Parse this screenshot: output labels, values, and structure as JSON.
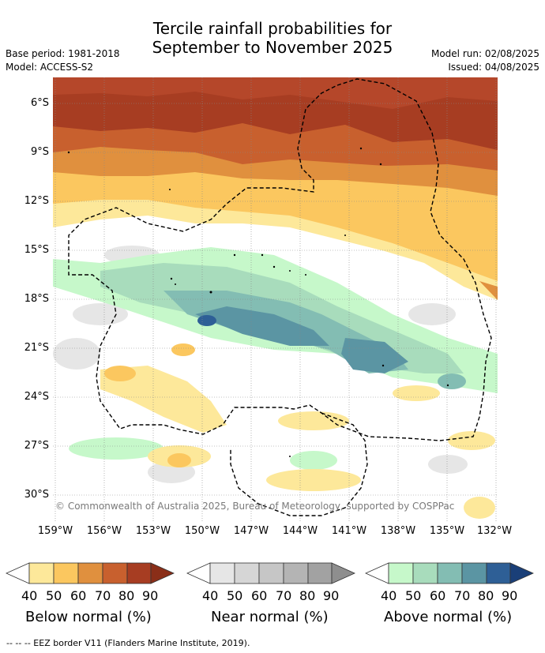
{
  "header": {
    "title_line1": "Tercile rainfall probabilities for",
    "title_line2": "September to November 2025",
    "base_period": "Base period: 1981-2018",
    "model": "Model: ACCESS-S2",
    "model_run": "Model run: 02/08/2025",
    "issued": "Issued: 04/08/2025"
  },
  "map": {
    "lat_labels": [
      "6°S",
      "9°S",
      "12°S",
      "15°S",
      "18°S",
      "21°S",
      "24°S",
      "27°S",
      "30°S"
    ],
    "lon_labels": [
      "159°W",
      "156°W",
      "153°W",
      "150°W",
      "147°W",
      "144°W",
      "141°W",
      "138°W",
      "135°W",
      "132°W"
    ],
    "copyright": "© Commonwealth of Australia 2025, Bureau of Meteorology, supported by COSPPac"
  },
  "colorbars": {
    "below": {
      "title": "Below normal (%)",
      "ticks": [
        "40",
        "50",
        "60",
        "70",
        "80",
        "90"
      ],
      "colors": [
        "#ffffff",
        "#fde89a",
        "#fbc75f",
        "#e0903e",
        "#c8602e",
        "#a73d22",
        "#8a2e18"
      ]
    },
    "near": {
      "title": "Near normal (%)",
      "ticks": [
        "40",
        "50",
        "60",
        "70",
        "80",
        "90"
      ],
      "colors": [
        "#ffffff",
        "#e6e6e6",
        "#d6d6d6",
        "#c6c6c6",
        "#b4b4b4",
        "#a2a2a2",
        "#8e8e8e"
      ]
    },
    "above": {
      "title": "Above normal (%)",
      "ticks": [
        "40",
        "50",
        "60",
        "70",
        "80",
        "90"
      ],
      "colors": [
        "#ffffff",
        "#c6f8ca",
        "#a8dcbc",
        "#83bdb3",
        "#5b95a3",
        "#2e5f96",
        "#1a3f78"
      ]
    }
  },
  "footer": {
    "legend_text": "--  --  -- EEZ border V11 (Flanders Marine Institute, 2019)."
  }
}
